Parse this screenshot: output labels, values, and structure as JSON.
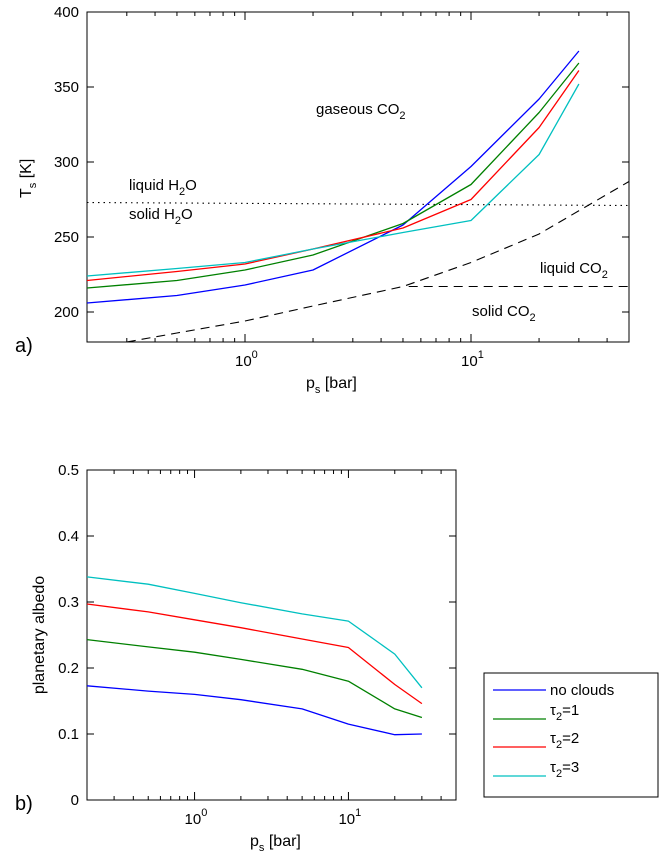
{
  "chart_data": [
    {
      "panel": "a)",
      "type": "line",
      "xscale": "log",
      "xlim": [
        0.2,
        50
      ],
      "ylim": [
        180,
        400
      ],
      "xlabel": {
        "main": "p",
        "sub": "s",
        "tail": " [bar]"
      },
      "ylabel": {
        "main": "T",
        "sub": "s",
        "tail": " [K]"
      },
      "yticks": [
        200,
        250,
        300,
        350,
        400
      ],
      "xticks": [
        {
          "value": 1,
          "base": "10",
          "exp": "0"
        },
        {
          "value": 10,
          "base": "10",
          "exp": "1"
        }
      ],
      "series": [
        {
          "color": "#0000ff",
          "x": [
            0.2,
            0.5,
            1,
            2,
            5,
            10,
            20,
            30
          ],
          "y": [
            206,
            211,
            218,
            228,
            258,
            297,
            342,
            374
          ]
        },
        {
          "color": "#008000",
          "x": [
            0.2,
            0.5,
            1,
            2,
            5,
            10,
            20,
            30
          ],
          "y": [
            216,
            221,
            228,
            238,
            259,
            285,
            333,
            366
          ]
        },
        {
          "color": "#ff0000",
          "x": [
            0.2,
            0.5,
            1,
            2,
            5,
            10,
            20,
            30
          ],
          "y": [
            221,
            227,
            232,
            242,
            256,
            275,
            323,
            361
          ]
        },
        {
          "color": "#00c0c0",
          "x": [
            0.2,
            0.5,
            1,
            2,
            5,
            10,
            20,
            30
          ],
          "y": [
            224,
            229,
            233,
            242,
            253,
            261,
            305,
            352
          ]
        }
      ],
      "reference_lines": [
        {
          "style": "dotted",
          "x": [
            0.2,
            50
          ],
          "y": [
            273,
            271
          ]
        },
        {
          "style": "dashed",
          "x": [
            0.3,
            0.5,
            1,
            2,
            5,
            10,
            20,
            50
          ],
          "y": [
            180,
            186,
            194,
            204,
            217,
            233,
            252,
            287
          ]
        },
        {
          "style": "dashed",
          "x": [
            5.3,
            50
          ],
          "y": [
            217,
            217
          ]
        }
      ],
      "annotations": [
        {
          "main": "gaseous CO",
          "sub": "2",
          "tail": ""
        },
        {
          "main": "liquid H",
          "sub": "2",
          "tail": "O"
        },
        {
          "main": "solid H",
          "sub": "2",
          "tail": "O"
        },
        {
          "main": "liquid CO",
          "sub": "2",
          "tail": ""
        },
        {
          "main": "solid CO",
          "sub": "2",
          "tail": ""
        }
      ]
    },
    {
      "panel": "b)",
      "type": "line",
      "xscale": "log",
      "xlim": [
        0.2,
        50
      ],
      "ylim": [
        0,
        0.5
      ],
      "xlabel": {
        "main": "p",
        "sub": "s",
        "tail": " [bar]"
      },
      "ylabel": {
        "main": "planetary albedo"
      },
      "yticks": [
        "0",
        "0.1",
        "0.2",
        "0.3",
        "0.4",
        "0.5"
      ],
      "xticks": [
        {
          "value": 1,
          "base": "10",
          "exp": "0"
        },
        {
          "value": 10,
          "base": "10",
          "exp": "1"
        }
      ],
      "series": [
        {
          "color": "#0000ff",
          "x": [
            0.2,
            0.5,
            1,
            2,
            5,
            10,
            20,
            30
          ],
          "y": [
            0.173,
            0.165,
            0.16,
            0.152,
            0.138,
            0.115,
            0.099,
            0.1
          ]
        },
        {
          "color": "#008000",
          "x": [
            0.2,
            0.5,
            1,
            2,
            5,
            10,
            20,
            30
          ],
          "y": [
            0.243,
            0.232,
            0.224,
            0.213,
            0.198,
            0.18,
            0.138,
            0.125
          ]
        },
        {
          "color": "#ff0000",
          "x": [
            0.2,
            0.5,
            1,
            2,
            5,
            10,
            20,
            30
          ],
          "y": [
            0.297,
            0.285,
            0.273,
            0.261,
            0.244,
            0.231,
            0.175,
            0.146
          ]
        },
        {
          "color": "#00c0c0",
          "x": [
            0.2,
            0.5,
            1,
            2,
            5,
            10,
            20,
            30
          ],
          "y": [
            0.338,
            0.327,
            0.313,
            0.299,
            0.282,
            0.271,
            0.221,
            0.17
          ]
        }
      ],
      "legend": {
        "placement": "right",
        "entries": [
          {
            "color": "#0000ff",
            "main": "no clouds",
            "sub": "",
            "tail": ""
          },
          {
            "color": "#008000",
            "main": "τ",
            "sub": "2",
            "tail": "=1"
          },
          {
            "color": "#ff0000",
            "main": "τ",
            "sub": "2",
            "tail": "=2"
          },
          {
            "color": "#00c0c0",
            "main": "τ",
            "sub": "2",
            "tail": "=3"
          }
        ]
      }
    }
  ]
}
